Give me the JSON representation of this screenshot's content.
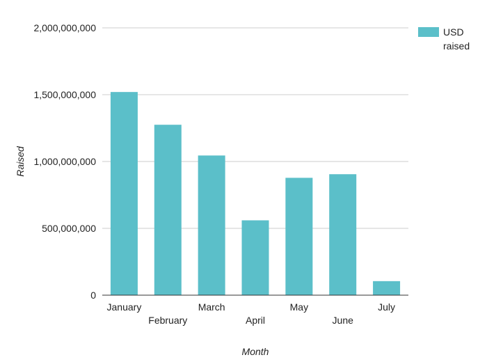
{
  "chart_data": {
    "type": "bar",
    "title": "",
    "xlabel": "Month",
    "ylabel": "Raised",
    "categories": [
      "January",
      "February",
      "March",
      "April",
      "May",
      "June",
      "July"
    ],
    "series": [
      {
        "name": "USD raised",
        "color": "#5bbfc9",
        "values": [
          1520000000,
          1275000000,
          1045000000,
          560000000,
          878000000,
          905000000,
          105000000
        ]
      }
    ],
    "ylim": [
      0,
      2000000000
    ],
    "yticks": [
      0,
      500000000,
      1000000000,
      1500000000,
      2000000000
    ],
    "ytick_labels": [
      "0",
      "500,000,000",
      "1,000,000,000",
      "1,500,000,000",
      "2,000,000,000"
    ],
    "grid": true,
    "legend": {
      "position": "top-right",
      "label_lines": [
        "USD",
        "raised"
      ]
    }
  }
}
